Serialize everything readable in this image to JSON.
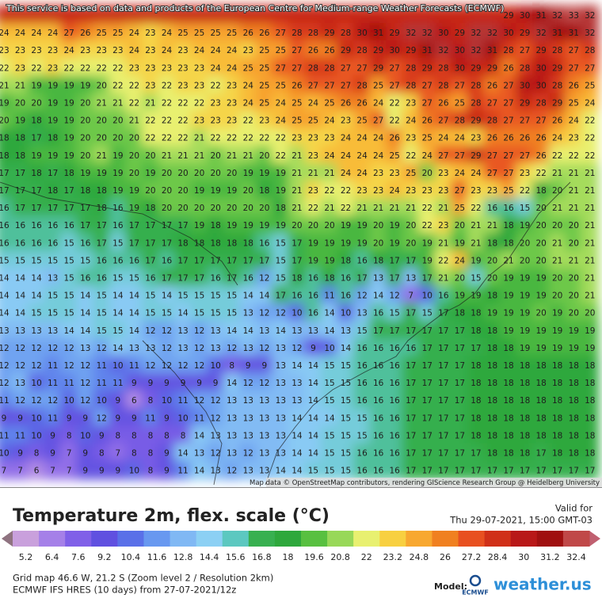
{
  "attribution": "This service is based on data and products of the European Centre for Medium-range Weather Forecasts (ECMWF)",
  "map_credit": "Map data © OpenStreetMap contributors, rendering GIScience Research Group @ Heidelberg University",
  "map": {
    "grid": [
      [
        null,
        null,
        null,
        null,
        null,
        null,
        null,
        null,
        null,
        null,
        null,
        null,
        null,
        null,
        null,
        null,
        null,
        null,
        null,
        null,
        null,
        null,
        null,
        null,
        null,
        null,
        null,
        null,
        null,
        null,
        null,
        29,
        30,
        31,
        32,
        33,
        32
      ],
      [
        24,
        24,
        24,
        24,
        27,
        26,
        25,
        25,
        24,
        23,
        24,
        25,
        25,
        25,
        25,
        26,
        26,
        27,
        28,
        28,
        29,
        28,
        30,
        31,
        29,
        32,
        32,
        30,
        29,
        32,
        32,
        30,
        29,
        32,
        31,
        31,
        32
      ],
      [
        23,
        23,
        23,
        23,
        24,
        23,
        23,
        23,
        24,
        23,
        24,
        23,
        24,
        24,
        24,
        23,
        25,
        25,
        27,
        26,
        26,
        29,
        28,
        29,
        30,
        29,
        31,
        32,
        30,
        32,
        31,
        28,
        27,
        29,
        28,
        27,
        28
      ],
      [
        22,
        23,
        22,
        23,
        22,
        22,
        22,
        22,
        23,
        23,
        23,
        23,
        23,
        24,
        24,
        25,
        25,
        27,
        27,
        28,
        28,
        27,
        27,
        29,
        27,
        28,
        29,
        28,
        30,
        29,
        29,
        26,
        28,
        30,
        29,
        27,
        27
      ],
      [
        21,
        21,
        19,
        19,
        19,
        19,
        20,
        22,
        22,
        23,
        22,
        23,
        23,
        22,
        23,
        24,
        25,
        25,
        26,
        27,
        27,
        27,
        28,
        25,
        27,
        28,
        27,
        28,
        27,
        28,
        26,
        27,
        30,
        30,
        28,
        26,
        25
      ],
      [
        19,
        20,
        20,
        19,
        19,
        20,
        21,
        21,
        22,
        21,
        22,
        22,
        22,
        23,
        23,
        24,
        25,
        24,
        25,
        24,
        25,
        26,
        26,
        24,
        22,
        23,
        27,
        26,
        25,
        28,
        27,
        27,
        29,
        28,
        29,
        25,
        24
      ],
      [
        20,
        19,
        18,
        19,
        19,
        20,
        20,
        20,
        21,
        22,
        22,
        22,
        23,
        23,
        23,
        22,
        23,
        24,
        25,
        25,
        24,
        23,
        25,
        27,
        22,
        24,
        26,
        27,
        28,
        29,
        28,
        27,
        27,
        27,
        26,
        24,
        22
      ],
      [
        18,
        18,
        17,
        18,
        19,
        20,
        20,
        20,
        20,
        22,
        22,
        22,
        21,
        22,
        22,
        22,
        22,
        22,
        23,
        23,
        23,
        24,
        24,
        24,
        26,
        23,
        25,
        24,
        24,
        23,
        26,
        26,
        26,
        26,
        24,
        23,
        22
      ],
      [
        18,
        18,
        19,
        19,
        19,
        20,
        21,
        19,
        20,
        20,
        21,
        21,
        21,
        20,
        21,
        21,
        20,
        22,
        21,
        23,
        24,
        24,
        24,
        24,
        25,
        22,
        24,
        27,
        27,
        29,
        27,
        27,
        27,
        26,
        22,
        22,
        22
      ],
      [
        17,
        17,
        18,
        17,
        18,
        19,
        19,
        19,
        20,
        19,
        20,
        20,
        20,
        20,
        20,
        19,
        19,
        19,
        21,
        21,
        21,
        24,
        24,
        23,
        23,
        25,
        20,
        23,
        24,
        24,
        27,
        27,
        23,
        22,
        21,
        21,
        21
      ],
      [
        17,
        17,
        17,
        18,
        17,
        18,
        18,
        19,
        19,
        20,
        20,
        20,
        19,
        19,
        19,
        20,
        18,
        19,
        21,
        23,
        22,
        22,
        23,
        23,
        24,
        23,
        23,
        23,
        27,
        23,
        23,
        25,
        22,
        18,
        20,
        21,
        21
      ],
      [
        16,
        17,
        17,
        17,
        17,
        17,
        18,
        16,
        19,
        18,
        20,
        20,
        20,
        20,
        20,
        20,
        20,
        18,
        21,
        22,
        21,
        22,
        21,
        21,
        21,
        21,
        22,
        21,
        25,
        22,
        16,
        16,
        15,
        20,
        21,
        21,
        21
      ],
      [
        16,
        16,
        16,
        16,
        16,
        17,
        17,
        16,
        17,
        17,
        17,
        17,
        19,
        18,
        19,
        19,
        19,
        19,
        20,
        20,
        20,
        19,
        19,
        20,
        19,
        20,
        22,
        23,
        20,
        21,
        21,
        18,
        19,
        20,
        20,
        20,
        21
      ],
      [
        16,
        16,
        16,
        16,
        15,
        16,
        17,
        15,
        17,
        17,
        17,
        18,
        18,
        18,
        18,
        18,
        16,
        15,
        17,
        19,
        19,
        19,
        19,
        20,
        19,
        20,
        19,
        21,
        19,
        21,
        18,
        18,
        20,
        20,
        21,
        20,
        21
      ],
      [
        15,
        15,
        15,
        15,
        15,
        15,
        16,
        16,
        16,
        17,
        16,
        17,
        17,
        17,
        17,
        17,
        17,
        15,
        17,
        19,
        19,
        18,
        16,
        18,
        17,
        17,
        19,
        22,
        24,
        19,
        20,
        21,
        20,
        20,
        21,
        21,
        21
      ],
      [
        14,
        14,
        14,
        13,
        15,
        16,
        16,
        15,
        15,
        16,
        17,
        17,
        17,
        16,
        17,
        16,
        12,
        15,
        18,
        16,
        18,
        16,
        17,
        13,
        17,
        13,
        17,
        21,
        20,
        15,
        20,
        19,
        19,
        19,
        20,
        20,
        21
      ],
      [
        14,
        14,
        14,
        15,
        15,
        14,
        15,
        14,
        14,
        15,
        14,
        15,
        15,
        15,
        15,
        14,
        14,
        17,
        16,
        16,
        11,
        16,
        12,
        14,
        12,
        7,
        10,
        16,
        19,
        19,
        18,
        19,
        19,
        19,
        20,
        20,
        21
      ],
      [
        14,
        14,
        15,
        15,
        15,
        14,
        15,
        14,
        14,
        15,
        15,
        14,
        15,
        15,
        15,
        13,
        12,
        12,
        10,
        16,
        14,
        10,
        13,
        16,
        15,
        17,
        15,
        17,
        18,
        18,
        19,
        19,
        19,
        20,
        19,
        20,
        20
      ],
      [
        13,
        13,
        13,
        13,
        14,
        14,
        15,
        15,
        14,
        12,
        12,
        13,
        12,
        13,
        14,
        14,
        13,
        14,
        13,
        13,
        14,
        13,
        15,
        17,
        17,
        17,
        17,
        17,
        17,
        18,
        18,
        19,
        19,
        19,
        19,
        19,
        19
      ],
      [
        12,
        12,
        12,
        12,
        12,
        13,
        12,
        14,
        13,
        13,
        12,
        13,
        12,
        13,
        12,
        13,
        12,
        13,
        12,
        9,
        10,
        14,
        16,
        16,
        16,
        16,
        17,
        17,
        17,
        17,
        18,
        18,
        19,
        19,
        19,
        19,
        19
      ],
      [
        12,
        12,
        12,
        11,
        12,
        12,
        11,
        10,
        11,
        12,
        12,
        12,
        12,
        10,
        8,
        9,
        9,
        13,
        14,
        14,
        15,
        15,
        16,
        16,
        16,
        17,
        17,
        17,
        17,
        18,
        18,
        18,
        18,
        18,
        18,
        18,
        18
      ],
      [
        12,
        13,
        10,
        11,
        11,
        12,
        11,
        11,
        9,
        9,
        9,
        9,
        9,
        9,
        14,
        12,
        12,
        13,
        13,
        14,
        15,
        15,
        16,
        16,
        16,
        17,
        17,
        17,
        17,
        18,
        18,
        18,
        18,
        18,
        18,
        18,
        18
      ],
      [
        11,
        12,
        12,
        12,
        10,
        12,
        10,
        9,
        6,
        8,
        10,
        11,
        12,
        12,
        13,
        13,
        13,
        13,
        13,
        14,
        15,
        15,
        16,
        16,
        16,
        17,
        17,
        17,
        17,
        18,
        18,
        18,
        18,
        18,
        18,
        18,
        18
      ],
      [
        9,
        9,
        10,
        11,
        9,
        9,
        12,
        9,
        9,
        11,
        9,
        10,
        11,
        12,
        13,
        13,
        13,
        13,
        14,
        14,
        14,
        15,
        15,
        16,
        16,
        17,
        17,
        17,
        17,
        18,
        18,
        18,
        18,
        18,
        18,
        18,
        18
      ],
      [
        11,
        11,
        10,
        9,
        8,
        10,
        9,
        8,
        8,
        8,
        8,
        8,
        14,
        13,
        13,
        13,
        13,
        13,
        14,
        14,
        15,
        15,
        15,
        16,
        16,
        17,
        17,
        17,
        17,
        18,
        18,
        18,
        18,
        18,
        18,
        18,
        18
      ],
      [
        10,
        9,
        8,
        9,
        7,
        9,
        8,
        7,
        8,
        8,
        9,
        14,
        13,
        12,
        13,
        12,
        13,
        13,
        14,
        14,
        15,
        15,
        16,
        16,
        16,
        17,
        17,
        17,
        17,
        17,
        18,
        18,
        18,
        17,
        18,
        18,
        18
      ],
      [
        7,
        7,
        6,
        7,
        7,
        9,
        9,
        9,
        10,
        8,
        9,
        11,
        14,
        13,
        12,
        13,
        13,
        14,
        14,
        15,
        15,
        15,
        16,
        16,
        16,
        17,
        17,
        17,
        17,
        17,
        17,
        17,
        17,
        17,
        17,
        17,
        17
      ]
    ]
  },
  "legend": {
    "title": "Temperature 2m, flex. scale (°C)",
    "valid_label": "Valid for",
    "valid_time": "Thu 29-07-2021, 15:00 GMT-03",
    "ticks": [
      5.2,
      6.4,
      7.6,
      9.2,
      10.4,
      11.6,
      12.8,
      14.4,
      15.6,
      16.8,
      18,
      19.6,
      20.8,
      22,
      23.2,
      24.8,
      26,
      27.2,
      28.4,
      30,
      31.2,
      32.4
    ],
    "colors": [
      "#c9a0dc",
      "#a580e8",
      "#8060e8",
      "#6050e0",
      "#5a70e8",
      "#6898f0",
      "#80b8f4",
      "#8cd0f4",
      "#5cc8c0",
      "#38b050",
      "#2ea83c",
      "#58c040",
      "#98d858",
      "#e8f070",
      "#f8d040",
      "#f8a830",
      "#f08020",
      "#e85020",
      "#d03018",
      "#b81818",
      "#a01010",
      "#c04848"
    ]
  },
  "footer": {
    "grid_info": "Grid map 46.6 W, 21.2 S (Zoom level 2 / Resolution 2km)",
    "run_info": "ECMWF IFS HRES (10 days) from 27-07-2021/12z",
    "model_label": "Model:",
    "ecmwf_logo": "ECMWF",
    "brand": "weather.us"
  }
}
